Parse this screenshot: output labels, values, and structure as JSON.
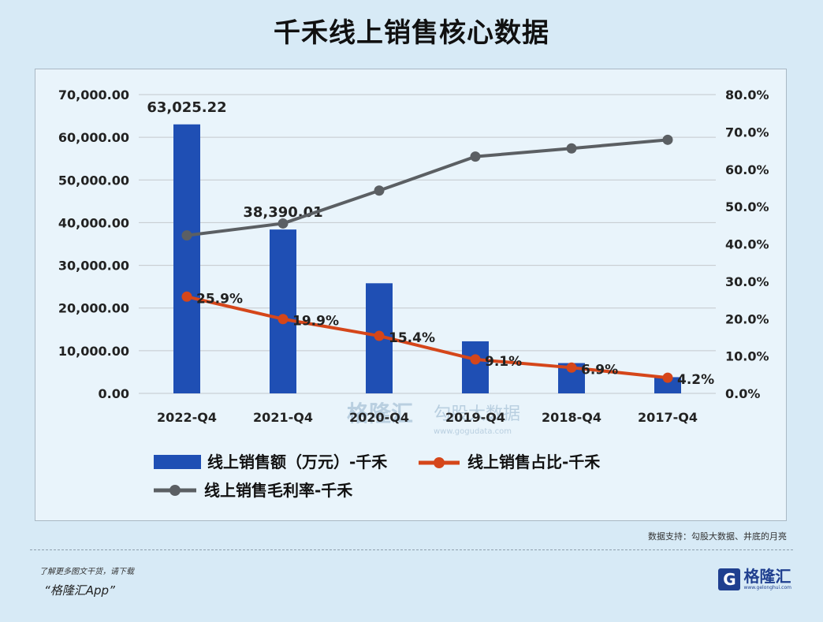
{
  "page": {
    "title": "千禾线上销售核心数据",
    "source": "数据支持：勾股大数据、井底的月亮",
    "promo_line": "了解更多图文干货，请下载",
    "promo_app": "“格隆汇App”",
    "brand_name": "格隆汇",
    "brand_url": "www.gelonghui.com",
    "brand_icon": "G"
  },
  "chart_data": {
    "type": "bar",
    "title": "千禾线上销售核心数据",
    "categories": [
      "2022-Q4",
      "2021-Q4",
      "2020-Q4",
      "2019-Q4",
      "2018-Q4",
      "2017-Q4"
    ],
    "y_left": {
      "ylim": [
        0,
        70000
      ],
      "ticks": [
        "0.00",
        "10,000.00",
        "20,000.00",
        "30,000.00",
        "40,000.00",
        "50,000.00",
        "60,000.00",
        "70,000.00"
      ]
    },
    "y_right": {
      "ylim": [
        0,
        80
      ],
      "ticks": [
        "0.0%",
        "10.0%",
        "20.0%",
        "30.0%",
        "40.0%",
        "50.0%",
        "60.0%",
        "70.0%",
        "80.0%"
      ]
    },
    "grid": true,
    "legend_position": "bottom",
    "series": [
      {
        "name": "线上销售额（万元）-千禾",
        "kind": "bar",
        "axis": "left",
        "color": "#1f4fb4",
        "values": [
          63025.22,
          38390.01,
          25800,
          12200,
          7100,
          3800
        ],
        "data_labels": [
          "63,025.22",
          "38,390.01",
          "",
          "",
          "",
          ""
        ]
      },
      {
        "name": "线上销售占比-千禾",
        "kind": "line",
        "axis": "right",
        "color": "#d5461a",
        "values": [
          25.9,
          19.9,
          15.4,
          9.1,
          6.9,
          4.2
        ],
        "data_labels": [
          "25.9%",
          "19.9%",
          "15.4%",
          "9.1%",
          "6.9%",
          "4.2%"
        ]
      },
      {
        "name": "线上销售毛利率-千禾",
        "kind": "line",
        "axis": "right",
        "color": "#5b5f63",
        "values": [
          42.3,
          45.5,
          54.3,
          63.4,
          65.6,
          67.9
        ],
        "data_labels": [
          "",
          "",
          "",
          "",
          "",
          ""
        ]
      }
    ],
    "watermark": [
      "格隆汇",
      "勾股大数据",
      "www.gogudata.com"
    ]
  }
}
